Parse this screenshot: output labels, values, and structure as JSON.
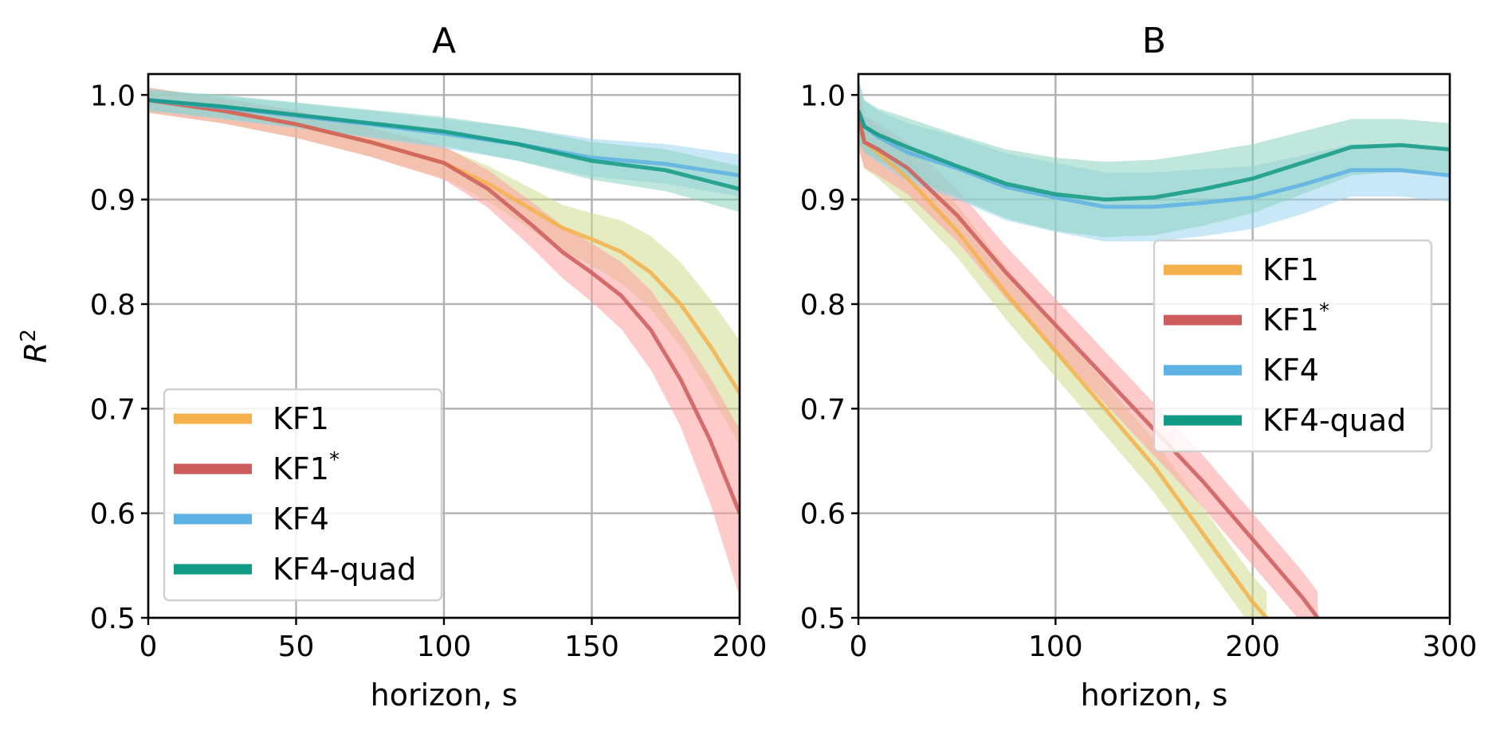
{
  "chart_data": [
    {
      "type": "line",
      "title": "A",
      "xlabel": "horizon, s",
      "ylabel": "R^2",
      "xlim": [
        0,
        200
      ],
      "ylim": [
        0.5,
        1.02
      ],
      "xticks": [
        0,
        50,
        100,
        150,
        200
      ],
      "yticks": [
        0.5,
        0.6,
        0.7,
        0.8,
        0.9,
        1.0
      ],
      "grid": true,
      "legend_position": "lower-left",
      "series": [
        {
          "name": "KF1",
          "label_main": "KF1",
          "label_sup": "",
          "color": "#f5b14c",
          "band_color": "#cfdc8e",
          "x": [
            0,
            25,
            50,
            75,
            100,
            115,
            130,
            140,
            150,
            160,
            170,
            180,
            190,
            200
          ],
          "y": [
            0.995,
            0.985,
            0.972,
            0.955,
            0.935,
            0.915,
            0.89,
            0.873,
            0.862,
            0.85,
            0.83,
            0.8,
            0.76,
            0.715
          ],
          "band": [
            0.012,
            0.012,
            0.013,
            0.014,
            0.015,
            0.017,
            0.02,
            0.022,
            0.025,
            0.03,
            0.035,
            0.04,
            0.045,
            0.05
          ]
        },
        {
          "name": "KF1*",
          "label_main": "KF1",
          "label_sup": "*",
          "color": "#cd5c5c",
          "band_color": "#ff9e9e",
          "x": [
            0,
            25,
            50,
            75,
            100,
            115,
            130,
            140,
            150,
            160,
            170,
            180,
            190,
            200
          ],
          "y": [
            0.995,
            0.985,
            0.972,
            0.955,
            0.935,
            0.91,
            0.875,
            0.85,
            0.83,
            0.808,
            0.775,
            0.728,
            0.67,
            0.6
          ],
          "band": [
            0.012,
            0.012,
            0.013,
            0.014,
            0.016,
            0.018,
            0.022,
            0.025,
            0.028,
            0.032,
            0.038,
            0.045,
            0.06,
            0.08
          ]
        },
        {
          "name": "KF4",
          "label_main": "KF4",
          "label_sup": "",
          "color": "#5db2e3",
          "band_color": "#9ad4f0",
          "x": [
            0,
            25,
            50,
            75,
            100,
            125,
            150,
            175,
            200
          ],
          "y": [
            0.995,
            0.988,
            0.98,
            0.972,
            0.963,
            0.953,
            0.94,
            0.934,
            0.923
          ],
          "band": [
            0.01,
            0.011,
            0.012,
            0.013,
            0.014,
            0.016,
            0.018,
            0.019,
            0.02
          ]
        },
        {
          "name": "KF4-quad",
          "label_main": "KF4-quad",
          "label_sup": "",
          "color": "#129a84",
          "band_color": "#8dd3bf",
          "x": [
            0,
            25,
            50,
            75,
            100,
            125,
            150,
            175,
            200
          ],
          "y": [
            0.995,
            0.989,
            0.981,
            0.973,
            0.965,
            0.953,
            0.937,
            0.928,
            0.91
          ],
          "band": [
            0.01,
            0.011,
            0.012,
            0.013,
            0.014,
            0.016,
            0.018,
            0.02,
            0.022
          ]
        }
      ]
    },
    {
      "type": "line",
      "title": "B",
      "xlabel": "horizon, s",
      "ylabel": "",
      "xlim": [
        0,
        300
      ],
      "ylim": [
        0.5,
        1.02
      ],
      "xticks": [
        0,
        100,
        200,
        300
      ],
      "yticks": [
        0.5,
        0.6,
        0.7,
        0.8,
        0.9,
        1.0
      ],
      "grid": true,
      "legend_position": "center-right",
      "series": [
        {
          "name": "KF1",
          "label_main": "KF1",
          "label_sup": "",
          "color": "#f5b14c",
          "band_color": "#cfdc8e",
          "x": [
            0,
            3,
            10,
            25,
            50,
            75,
            100,
            125,
            150,
            175,
            200,
            207
          ],
          "y": [
            0.98,
            0.955,
            0.945,
            0.92,
            0.87,
            0.81,
            0.755,
            0.7,
            0.645,
            0.58,
            0.515,
            0.5
          ],
          "band": [
            0.03,
            0.025,
            0.025,
            0.025,
            0.025,
            0.025,
            0.025,
            0.025,
            0.025,
            0.025,
            0.025,
            0.025
          ]
        },
        {
          "name": "KF1*",
          "label_main": "KF1",
          "label_sup": "*",
          "color": "#cd5c5c",
          "band_color": "#ff9e9e",
          "x": [
            0,
            3,
            10,
            25,
            50,
            75,
            100,
            125,
            150,
            175,
            200,
            225,
            233
          ],
          "y": [
            0.98,
            0.955,
            0.948,
            0.93,
            0.885,
            0.83,
            0.78,
            0.73,
            0.68,
            0.63,
            0.575,
            0.52,
            0.5
          ],
          "band": [
            0.03,
            0.025,
            0.025,
            0.025,
            0.025,
            0.025,
            0.025,
            0.025,
            0.025,
            0.025,
            0.025,
            0.025,
            0.025
          ]
        },
        {
          "name": "KF4",
          "label_main": "KF4",
          "label_sup": "",
          "color": "#5db2e3",
          "band_color": "#9ad4f0",
          "x": [
            0,
            3,
            10,
            25,
            50,
            75,
            100,
            125,
            150,
            175,
            200,
            225,
            250,
            275,
            300
          ],
          "y": [
            0.985,
            0.97,
            0.96,
            0.945,
            0.93,
            0.912,
            0.902,
            0.893,
            0.893,
            0.897,
            0.902,
            0.914,
            0.928,
            0.928,
            0.923
          ],
          "band": [
            0.03,
            0.025,
            0.025,
            0.028,
            0.03,
            0.032,
            0.033,
            0.033,
            0.033,
            0.032,
            0.03,
            0.028,
            0.025,
            0.025,
            0.025
          ]
        },
        {
          "name": "KF4-quad",
          "label_main": "KF4-quad",
          "label_sup": "",
          "color": "#129a84",
          "band_color": "#8dd3bf",
          "x": [
            0,
            3,
            10,
            25,
            50,
            75,
            100,
            125,
            150,
            175,
            200,
            225,
            250,
            275,
            300
          ],
          "y": [
            0.985,
            0.97,
            0.962,
            0.95,
            0.932,
            0.915,
            0.905,
            0.9,
            0.902,
            0.91,
            0.92,
            0.935,
            0.95,
            0.952,
            0.948
          ],
          "band": [
            0.03,
            0.025,
            0.025,
            0.028,
            0.03,
            0.033,
            0.035,
            0.036,
            0.036,
            0.035,
            0.033,
            0.03,
            0.027,
            0.025,
            0.025
          ]
        }
      ]
    }
  ]
}
